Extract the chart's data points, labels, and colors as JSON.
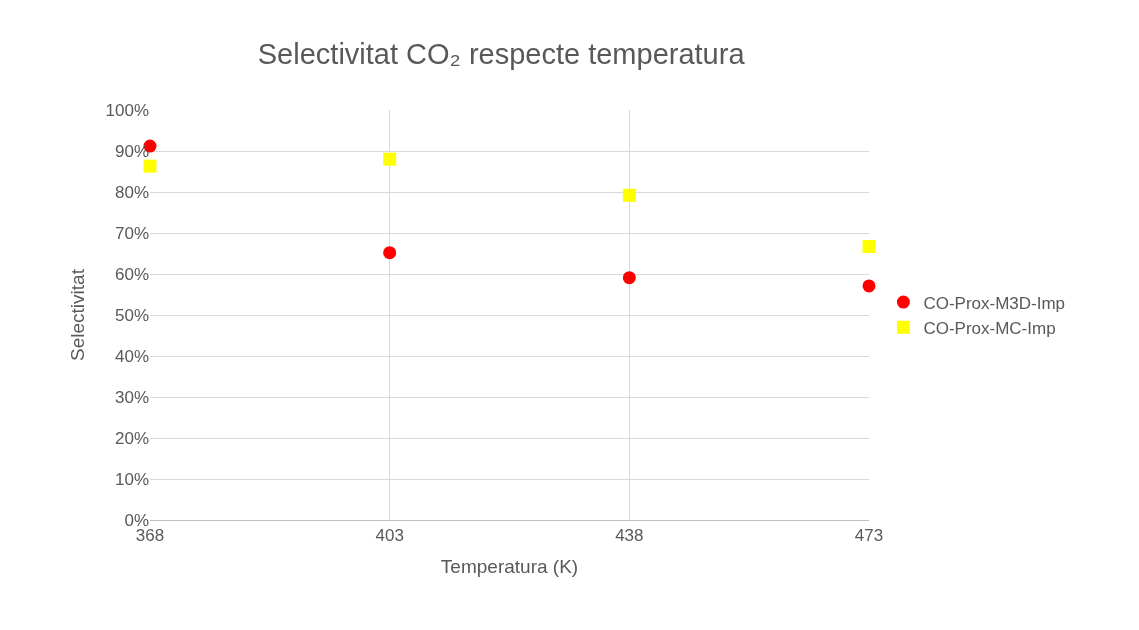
{
  "chart_data": {
    "type": "scatter",
    "title": "Selectivitat CO₂ respecte temperatura",
    "xlabel": "Temperatura (K)",
    "ylabel": "Selectivitat",
    "x": [
      368,
      403,
      438,
      473
    ],
    "series": [
      {
        "name": "CO-Prox-M3D-Imp",
        "color": "#ff0000",
        "marker": "circle",
        "values": [
          91.2,
          65.2,
          59.1,
          57.1
        ]
      },
      {
        "name": "CO-Prox-MC-Imp",
        "color": "#ffff00",
        "marker": "square",
        "values": [
          86.3,
          88.0,
          79.2,
          66.7
        ]
      }
    ],
    "xlim": [
      368,
      473
    ],
    "xticks": [
      368,
      403,
      438,
      473
    ],
    "ylim": [
      0,
      100
    ],
    "yticks": [
      {
        "value": 0,
        "label": "0%"
      },
      {
        "value": 10,
        "label": "10%"
      },
      {
        "value": 20,
        "label": "20%"
      },
      {
        "value": 30,
        "label": "30%"
      },
      {
        "value": 40,
        "label": "40%"
      },
      {
        "value": 50,
        "label": "50%"
      },
      {
        "value": 60,
        "label": "60%"
      },
      {
        "value": 70,
        "label": "70%"
      },
      {
        "value": 80,
        "label": "80%"
      },
      {
        "value": 90,
        "label": "90%"
      },
      {
        "value": 100,
        "label": "100%"
      }
    ],
    "grid": true,
    "legend": "right"
  }
}
